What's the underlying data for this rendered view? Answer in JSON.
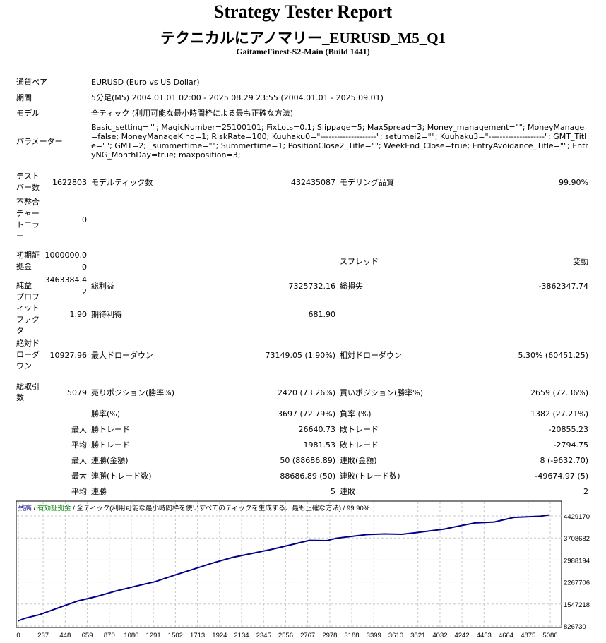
{
  "header": {
    "title": "Strategy Tester Report",
    "subtitle": "テクニカルにアノマリー_EURUSD_M5_Q1",
    "server": "GaitameFinest-S2-Main (Build 1441)"
  },
  "info": [
    {
      "label": "通貨ペア",
      "value": "EURUSD (Euro vs US Dollar)"
    },
    {
      "label": "期間",
      "value": "5分足(M5) 2004.01.01 02:00 - 2025.08.29 23:55 (2004.01.01 - 2025.09.01)"
    },
    {
      "label": "モデル",
      "value": "全ティック (利用可能な最小時間枠による最も正確な方法)"
    },
    {
      "label": "パラメーター",
      "value": "Basic_setting=\"\"; MagicNumber=25100101; FixLots=0.1; Slippage=5; MaxSpread=3; Money_management=\"\"; MoneyManage=false; MoneyManageKind=1; RiskRate=100; Kuuhaku0=\"--------------------\"; setumei2=\"\"; Kuuhaku3=\"--------------------\"; GMT_Title=\"\"; GMT=2; _summertime=\"\"; Summertime=1; PositionClose2_Title=\"\"; WeekEnd_Close=true; EntryAvoidance_Title=\"\"; EntryNG_MonthDay=true; maxposition=3;"
    }
  ],
  "stats": [
    [
      "テストバー数",
      "1622803",
      "モデルティック数",
      "432435087",
      "モデリング品質",
      "99.90%"
    ],
    [
      "不整合チャートエラー",
      "0",
      "",
      "",
      "",
      ""
    ],
    [
      "初期証拠金",
      "1000000.00",
      "",
      "",
      "スプレッド",
      "変動"
    ],
    [
      "純益",
      "3463384.42",
      "総利益",
      "7325732.16",
      "総損失",
      "-3862347.74"
    ],
    [
      "プロフィットファクタ",
      "1.90",
      "期待利得",
      "681.90",
      "",
      ""
    ],
    [
      "絶対ドローダウン",
      "10927.96",
      "最大ドローダウン",
      "73149.05 (1.90%)",
      "相対ドローダウン",
      "5.30% (60451.25)"
    ],
    [
      "総取引数",
      "5079",
      "売りポジション(勝率%)",
      "2420 (73.26%)",
      "買いポジション(勝率%)",
      "2659 (72.36%)"
    ],
    [
      "",
      "",
      "勝率(%)",
      "3697 (72.79%)",
      "負率 (%)",
      "1382 (27.21%)"
    ],
    [
      "",
      "最大",
      "勝トレード",
      "26640.73",
      "敗トレード",
      "-20855.23"
    ],
    [
      "",
      "平均",
      "勝トレード",
      "1981.53",
      "敗トレード",
      "-2794.75"
    ],
    [
      "",
      "最大",
      "連勝(金額)",
      "50 (88686.89)",
      "連敗(金額)",
      "8 (-9632.70)"
    ],
    [
      "",
      "最大",
      "連勝(トレード数)",
      "88686.89 (50)",
      "連敗(トレード数)",
      "-49674.97 (5)"
    ],
    [
      "",
      "平均",
      "連勝",
      "5",
      "連敗",
      "2"
    ]
  ],
  "chart_data": {
    "type": "line",
    "legend": {
      "balance": "残高",
      "separator": " / ",
      "equity": "有効証拠金",
      "model": "全ティック(利用可能な最小時間枠を使いすべてのティックを生成する、最も正確な方法)",
      "quality": "99.90%"
    },
    "colors": {
      "balance": "#00008b",
      "equity": "#008000",
      "grid": "#c8c8c8"
    },
    "x_ticks": [
      "0",
      "237",
      "448",
      "659",
      "870",
      "1080",
      "1291",
      "1502",
      "1713",
      "1924",
      "2134",
      "2345",
      "2556",
      "2767",
      "2978",
      "3188",
      "3399",
      "3610",
      "3821",
      "4032",
      "4242",
      "4453",
      "4664",
      "4875",
      "5086"
    ],
    "y_ticks": [
      "4429170",
      "3708682",
      "2988194",
      "2267706",
      "1547218",
      "826730"
    ],
    "xlim": [
      0,
      5086
    ],
    "ylim": [
      826730,
      4429170
    ],
    "grid": true,
    "series": [
      {
        "x": [
          0,
          60,
          203,
          380,
          571,
          755,
          940,
          1120,
          1308,
          1500,
          1677,
          1850,
          2045,
          2230,
          2414,
          2600,
          2782,
          2948,
          3040,
          3335,
          3500,
          3667,
          3800,
          4072,
          4200,
          4367,
          4550,
          4736,
          4994,
          5079
        ],
        "y": [
          1000000,
          1080000,
          1200000,
          1420000,
          1650000,
          1800000,
          1980000,
          2130000,
          2280000,
          2500000,
          2690000,
          2880000,
          3070000,
          3200000,
          3330000,
          3480000,
          3630000,
          3620000,
          3700000,
          3820000,
          3840000,
          3830000,
          3880000,
          4000000,
          4090000,
          4200000,
          4230000,
          4380000,
          4420000,
          4463384
        ]
      }
    ]
  }
}
